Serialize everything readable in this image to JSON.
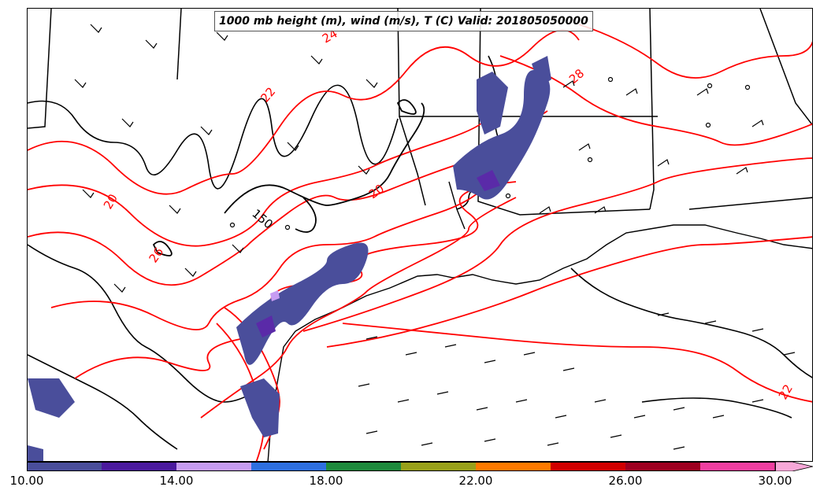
{
  "title": "1000 mb height (m), wind (m/s), T (C) Valid: 201805050000",
  "contour_labels": {
    "temp_24": "24",
    "temp_28": "28",
    "temp_22": "22",
    "temp_20a": "20",
    "temp_20b": "20",
    "temp_26": "26",
    "temp_22b": "22",
    "height_150": "150"
  },
  "colorbar": {
    "colors": [
      "#4a4e9b",
      "#4b1a9e",
      "#c79cf2",
      "#2e6fe0",
      "#1e8a3c",
      "#99a11a",
      "#ff7a00",
      "#d10000",
      "#9e0020",
      "#f03ea0",
      "#f7a8d8"
    ],
    "tick_labels": [
      "10.00",
      "14.00",
      "18.00",
      "22.00",
      "26.00",
      "30.00"
    ]
  },
  "colors": {
    "temperature_contour": "#ff0000",
    "height_contour": "#000000",
    "precip_shade": "#4a4e9b",
    "precip_core": "#5a2aa8"
  }
}
